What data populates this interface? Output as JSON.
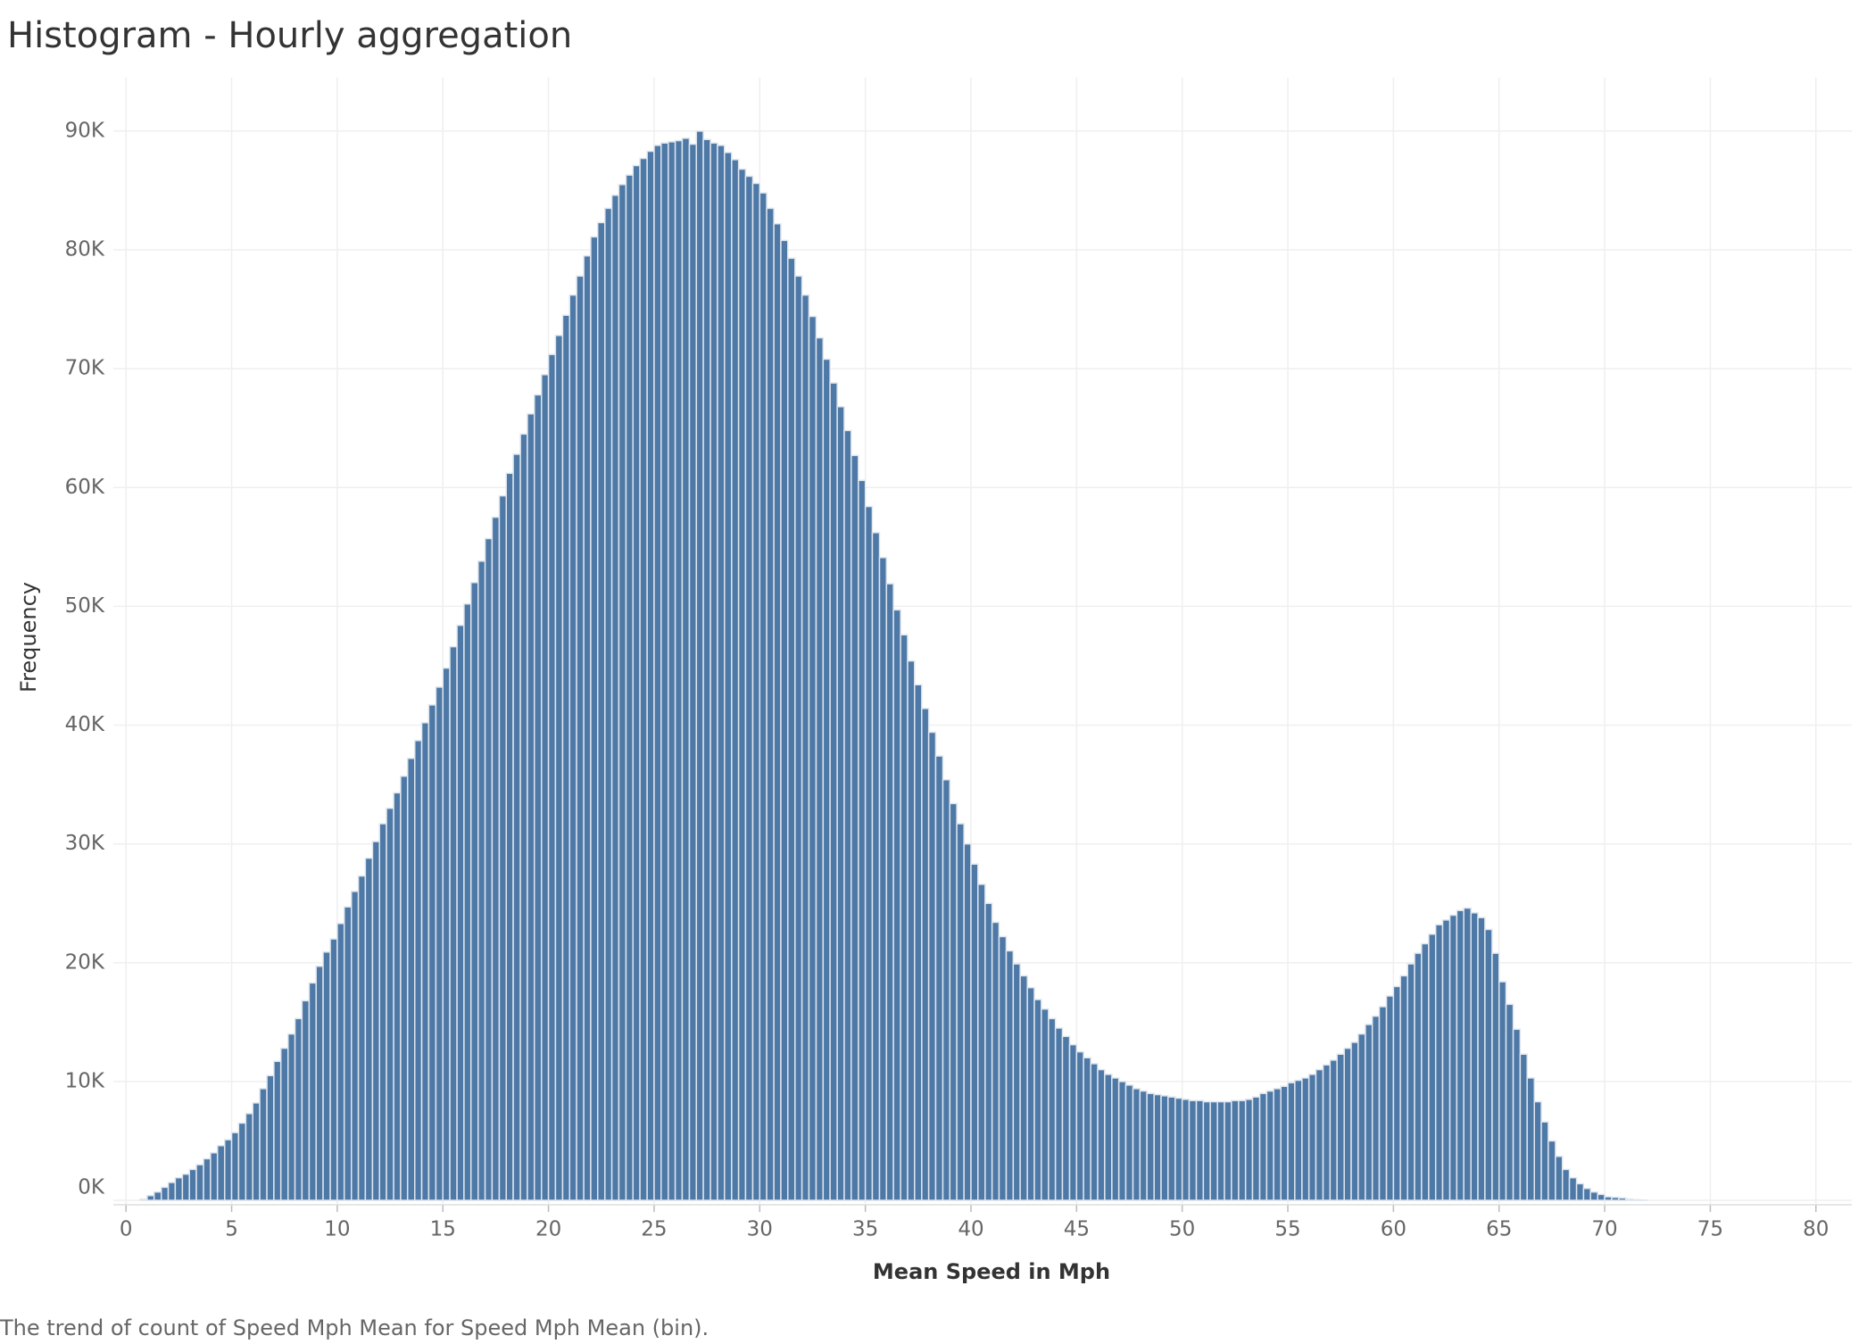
{
  "chart_data": {
    "type": "histogram",
    "title": "Histogram - Hourly aggregation",
    "x_label": "Mean Speed in Mph",
    "y_label": "Frequency",
    "caption": "The trend of count of Speed Mph Mean for Speed Mph Mean (bin).",
    "color": "#4e79a7",
    "grid": true,
    "bins": [
      0.67,
      1,
      1.33,
      1.67,
      2,
      2.33,
      2.67,
      3,
      3.33,
      3.67,
      4,
      4.33,
      4.67,
      5,
      5.33,
      5.67,
      6,
      6.33,
      6.67,
      7,
      7.33,
      7.67,
      8,
      8.33,
      8.67,
      9,
      9.33,
      9.67,
      10,
      10.33,
      10.67,
      11,
      11.33,
      11.67,
      12,
      12.33,
      12.67,
      13,
      13.33,
      13.67,
      14,
      14.33,
      14.67,
      15,
      15.33,
      15.67,
      16,
      16.33,
      16.67,
      17,
      17.33,
      17.67,
      18,
      18.33,
      18.67,
      19,
      19.33,
      19.67,
      20,
      20.33,
      20.67,
      21,
      21.33,
      21.67,
      22,
      22.33,
      22.67,
      23,
      23.33,
      23.67,
      24,
      24.33,
      24.67,
      25,
      25.33,
      25.67,
      26,
      26.33,
      26.67,
      27,
      27.33,
      27.67,
      28,
      28.33,
      28.67,
      29,
      29.33,
      29.67,
      30,
      30.33,
      30.67,
      31,
      31.33,
      31.67,
      32,
      32.33,
      32.67,
      33,
      33.33,
      33.67,
      34,
      34.33,
      34.67,
      35,
      35.33,
      35.67,
      36,
      36.33,
      36.67,
      37,
      37.33,
      37.67,
      38,
      38.33,
      38.67,
      39,
      39.33,
      39.67,
      40,
      40.33,
      40.67,
      41,
      41.33,
      41.67,
      42,
      42.33,
      42.67,
      43,
      43.33,
      43.67,
      44,
      44.33,
      44.67,
      45,
      45.33,
      45.67,
      46,
      46.33,
      46.67,
      47,
      47.33,
      47.67,
      48,
      48.33,
      48.67,
      49,
      49.33,
      49.67,
      50,
      50.33,
      50.67,
      51,
      51.33,
      51.67,
      52,
      52.33,
      52.67,
      53,
      53.33,
      53.67,
      54,
      54.33,
      54.67,
      55,
      55.33,
      55.67,
      56,
      56.33,
      56.67,
      57,
      57.33,
      57.67,
      58,
      58.33,
      58.67,
      59,
      59.33,
      59.67,
      60,
      60.33,
      60.67,
      61,
      61.33,
      61.67,
      62,
      62.33,
      62.67,
      63,
      63.33,
      63.67,
      64,
      64.33,
      64.67,
      65,
      65.33,
      65.67,
      66,
      66.33,
      66.67,
      67,
      67.33,
      67.67,
      68,
      68.33,
      68.67,
      69,
      69.33,
      69.67,
      70,
      70.33,
      70.67,
      71,
      71.33,
      71.67,
      72
    ],
    "values": [
      100,
      400,
      700,
      1100,
      1500,
      1900,
      2200,
      2600,
      3000,
      3500,
      4000,
      4600,
      5100,
      5700,
      6500,
      7300,
      8200,
      9400,
      10500,
      11700,
      12800,
      14000,
      15300,
      16800,
      18300,
      19700,
      20900,
      22000,
      23300,
      24700,
      26000,
      27300,
      28800,
      30200,
      31700,
      33000,
      34300,
      35700,
      37200,
      38700,
      40200,
      41700,
      43200,
      44800,
      46600,
      48400,
      50200,
      52000,
      53800,
      55700,
      57500,
      59300,
      61200,
      62800,
      64500,
      66200,
      67800,
      69500,
      71200,
      72800,
      74500,
      76200,
      77800,
      79500,
      81100,
      82300,
      83500,
      84600,
      85500,
      86300,
      87100,
      87700,
      88300,
      88800,
      89000,
      89100,
      89200,
      89400,
      88900,
      90000,
      89300,
      89000,
      88800,
      88200,
      87600,
      86800,
      86200,
      85600,
      84800,
      83500,
      82200,
      80800,
      79300,
      77800,
      76200,
      74400,
      72600,
      70800,
      68800,
      66800,
      64800,
      62700,
      60600,
      58400,
      56200,
      54100,
      51900,
      49700,
      47600,
      45400,
      43400,
      41400,
      39400,
      37400,
      35400,
      33400,
      31700,
      30000,
      28300,
      26600,
      25000,
      23400,
      22200,
      21000,
      19900,
      18900,
      17900,
      16900,
      16100,
      15300,
      14500,
      13800,
      13100,
      12500,
      12000,
      11500,
      11000,
      10600,
      10300,
      10000,
      9700,
      9400,
      9200,
      9000,
      8900,
      8800,
      8700,
      8600,
      8500,
      8400,
      8400,
      8300,
      8300,
      8300,
      8300,
      8400,
      8400,
      8500,
      8700,
      9000,
      9200,
      9400,
      9600,
      9900,
      10100,
      10300,
      10600,
      11000,
      11400,
      11800,
      12300,
      12800,
      13300,
      14000,
      14800,
      15500,
      16300,
      17200,
      18000,
      18900,
      19900,
      20800,
      21600,
      22400,
      23200,
      23600,
      24000,
      24400,
      24600,
      24200,
      23800,
      22800,
      20800,
      18400,
      16500,
      14400,
      12300,
      10300,
      8300,
      6600,
      5000,
      3700,
      2600,
      1900,
      1400,
      1000,
      700,
      500,
      300,
      250,
      200,
      100,
      50,
      20
    ],
    "xlim": [
      -0.6,
      81.7
    ],
    "xticks": [
      0,
      5,
      10,
      15,
      20,
      25,
      30,
      35,
      40,
      45,
      50,
      55,
      60,
      65,
      70,
      75,
      80
    ],
    "ylim": [
      0,
      94500
    ],
    "yticks": [
      {
        "value": 0,
        "label": "0K"
      },
      {
        "value": 10000,
        "label": "10K"
      },
      {
        "value": 20000,
        "label": "20K"
      },
      {
        "value": 30000,
        "label": "30K"
      },
      {
        "value": 40000,
        "label": "40K"
      },
      {
        "value": 50000,
        "label": "50K"
      },
      {
        "value": 60000,
        "label": "60K"
      },
      {
        "value": 70000,
        "label": "70K"
      },
      {
        "value": 80000,
        "label": "80K"
      },
      {
        "value": 90000,
        "label": "90K"
      }
    ]
  }
}
